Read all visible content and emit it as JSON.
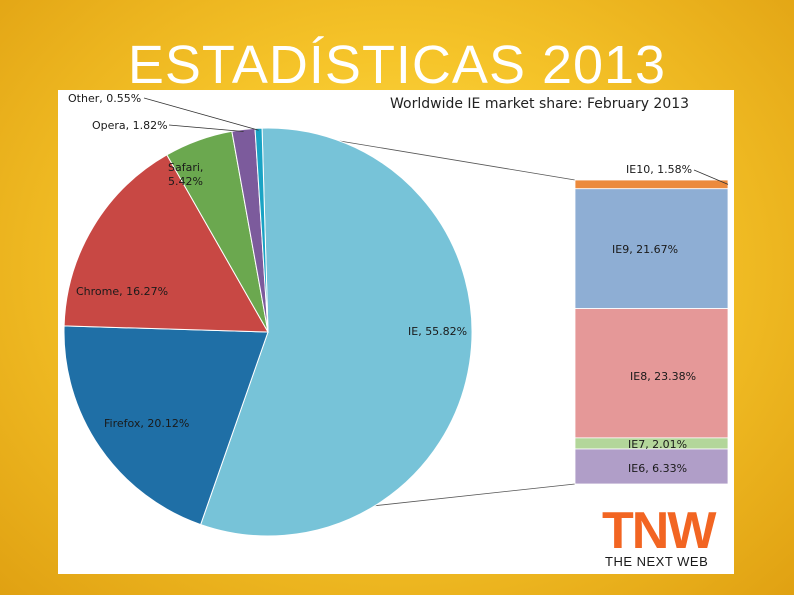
{
  "slide": {
    "title": "ESTADÍSTICAS 2013"
  },
  "colors": {
    "background": "#f6c52a",
    "ie": "#77c3d8",
    "firefox": "#1f6fa6",
    "chrome": "#c84844",
    "safari": "#6ba84f",
    "opera": "#7c5b9c",
    "other": "#1aa3c4",
    "ie10": "#ec8a3c",
    "ie9": "#8eaed4",
    "ie8": "#e59898",
    "ie7": "#b3d69a",
    "ie6": "#b09ec8",
    "logo": "#f26522"
  },
  "logo": {
    "letters": "TNW",
    "subtitle": "THE NEXT WEB"
  },
  "chart_data": [
    {
      "type": "pie",
      "title": "Worldwide IE market share: February 2013",
      "slices": [
        {
          "label": "IE",
          "value": 55.82,
          "text": "IE, 55.82%"
        },
        {
          "label": "Firefox",
          "value": 20.12,
          "text": "Firefox, 20.12%"
        },
        {
          "label": "Chrome",
          "value": 16.27,
          "text": "Chrome, 16.27%"
        },
        {
          "label": "Safari",
          "value": 5.42,
          "text": "Safari,|5.42%"
        },
        {
          "label": "Opera",
          "value": 1.82,
          "text": "Opera, 1.82%"
        },
        {
          "label": "Other",
          "value": 0.55,
          "text": "Other, 0.55%"
        }
      ]
    },
    {
      "type": "bar",
      "stacked": true,
      "breakdown_of": "IE",
      "segments": [
        {
          "label": "IE10",
          "value": 1.58,
          "text": "IE10, 1.58%"
        },
        {
          "label": "IE9",
          "value": 21.67,
          "text": "IE9, 21.67%"
        },
        {
          "label": "IE8",
          "value": 23.38,
          "text": "IE8, 23.38%"
        },
        {
          "label": "IE7",
          "value": 2.01,
          "text": "IE7, 2.01%"
        },
        {
          "label": "IE6",
          "value": 6.33,
          "text": "IE6, 6.33%"
        }
      ]
    }
  ]
}
